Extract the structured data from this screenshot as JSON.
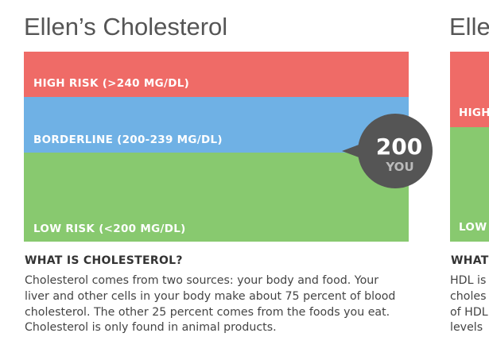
{
  "cards": [
    {
      "title": "Ellen’s Cholesterol",
      "bands": [
        "HIGH RISK (>240 MG/DL)",
        "BORDERLINE (200-239 MG/DL)",
        "LOW RISK (<200 MG/DL)"
      ],
      "marker": {
        "value": 200,
        "label": "YOU"
      },
      "section_title": "WHAT IS CHOLESTEROL?",
      "paragraph_lines": [
        "Cholesterol comes from two sources: your body and food. Your",
        "liver and other cells in your body make about 75 percent of blood",
        "cholesterol. The other 25 percent comes from the foods you eat.",
        "Cholesterol is only found in animal products."
      ]
    },
    {
      "title": "Elle",
      "bands": [
        "HIGH",
        "LOW"
      ],
      "section_title": "WHAT",
      "paragraph_lines": [
        "HDL is",
        "choles",
        "of HDL",
        "levels"
      ]
    }
  ]
}
